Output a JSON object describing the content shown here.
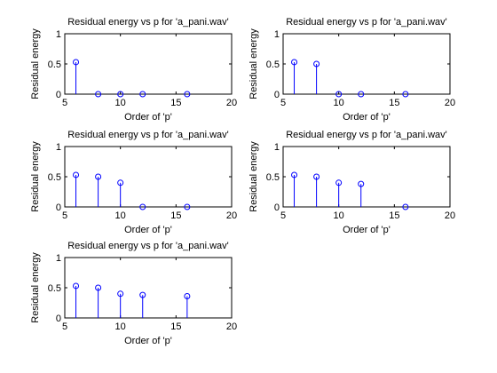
{
  "colors": {
    "background": "#ffffff",
    "axes": "#000000",
    "stem": "#0000ff",
    "marker": "#0000ff"
  },
  "chart_data": [
    {
      "type": "stem",
      "title": "Residual energy vs p for 'a_pani.wav'",
      "xlabel": "Order of 'p'",
      "ylabel": "Residual energy",
      "xlim": [
        5,
        20
      ],
      "ylim": [
        0,
        1
      ],
      "xticks": [
        5,
        10,
        15,
        20
      ],
      "yticks": [
        0,
        0.5,
        1
      ],
      "xtick_labels": [
        "5",
        "10",
        "15",
        "20"
      ],
      "ytick_labels": [
        "0",
        "0.5",
        "1"
      ],
      "grid": false,
      "legend": "none",
      "x": [
        6,
        8,
        10,
        12,
        16
      ],
      "y": [
        0.53,
        0,
        0,
        0,
        0
      ]
    },
    {
      "type": "stem",
      "title": "Residual energy vs p for 'a_pani.wav'",
      "xlabel": "Order of 'p'",
      "ylabel": "Residual energy",
      "xlim": [
        5,
        20
      ],
      "ylim": [
        0,
        1
      ],
      "xticks": [
        5,
        10,
        15,
        20
      ],
      "yticks": [
        0,
        0.5,
        1
      ],
      "xtick_labels": [
        "5",
        "10",
        "15",
        "20"
      ],
      "ytick_labels": [
        "0",
        "0.5",
        "1"
      ],
      "grid": false,
      "legend": "none",
      "x": [
        6,
        8,
        10,
        12,
        16
      ],
      "y": [
        0.53,
        0.5,
        0,
        0,
        0
      ]
    },
    {
      "type": "stem",
      "title": "Residual energy vs p for 'a_pani.wav'",
      "xlabel": "Order of 'p'",
      "ylabel": "Residual energy",
      "xlim": [
        5,
        20
      ],
      "ylim": [
        0,
        1
      ],
      "xticks": [
        5,
        10,
        15,
        20
      ],
      "yticks": [
        0,
        0.5,
        1
      ],
      "xtick_labels": [
        "5",
        "10",
        "15",
        "20"
      ],
      "ytick_labels": [
        "0",
        "0.5",
        "1"
      ],
      "grid": false,
      "legend": "none",
      "x": [
        6,
        8,
        10,
        12,
        16
      ],
      "y": [
        0.53,
        0.5,
        0.4,
        0,
        0
      ]
    },
    {
      "type": "stem",
      "title": "Residual energy vs p for 'a_pani.wav'",
      "xlabel": "Order of 'p'",
      "ylabel": "Residual energy",
      "xlim": [
        5,
        20
      ],
      "ylim": [
        0,
        1
      ],
      "xticks": [
        5,
        10,
        15,
        20
      ],
      "yticks": [
        0,
        0.5,
        1
      ],
      "xtick_labels": [
        "5",
        "10",
        "15",
        "20"
      ],
      "ytick_labels": [
        "0",
        "0.5",
        "1"
      ],
      "grid": false,
      "legend": "none",
      "x": [
        6,
        8,
        10,
        12,
        16
      ],
      "y": [
        0.53,
        0.5,
        0.4,
        0.38,
        0
      ]
    },
    {
      "type": "stem",
      "title": "Residual energy vs p for 'a_pani.wav'",
      "xlabel": "Order of 'p'",
      "ylabel": "Residual energy",
      "xlim": [
        5,
        20
      ],
      "ylim": [
        0,
        1
      ],
      "xticks": [
        5,
        10,
        15,
        20
      ],
      "yticks": [
        0,
        0.5,
        1
      ],
      "xtick_labels": [
        "5",
        "10",
        "15",
        "20"
      ],
      "ytick_labels": [
        "0",
        "0.5",
        "1"
      ],
      "grid": false,
      "legend": "none",
      "x": [
        6,
        8,
        10,
        12,
        16
      ],
      "y": [
        0.53,
        0.5,
        0.4,
        0.38,
        0.36
      ]
    }
  ]
}
